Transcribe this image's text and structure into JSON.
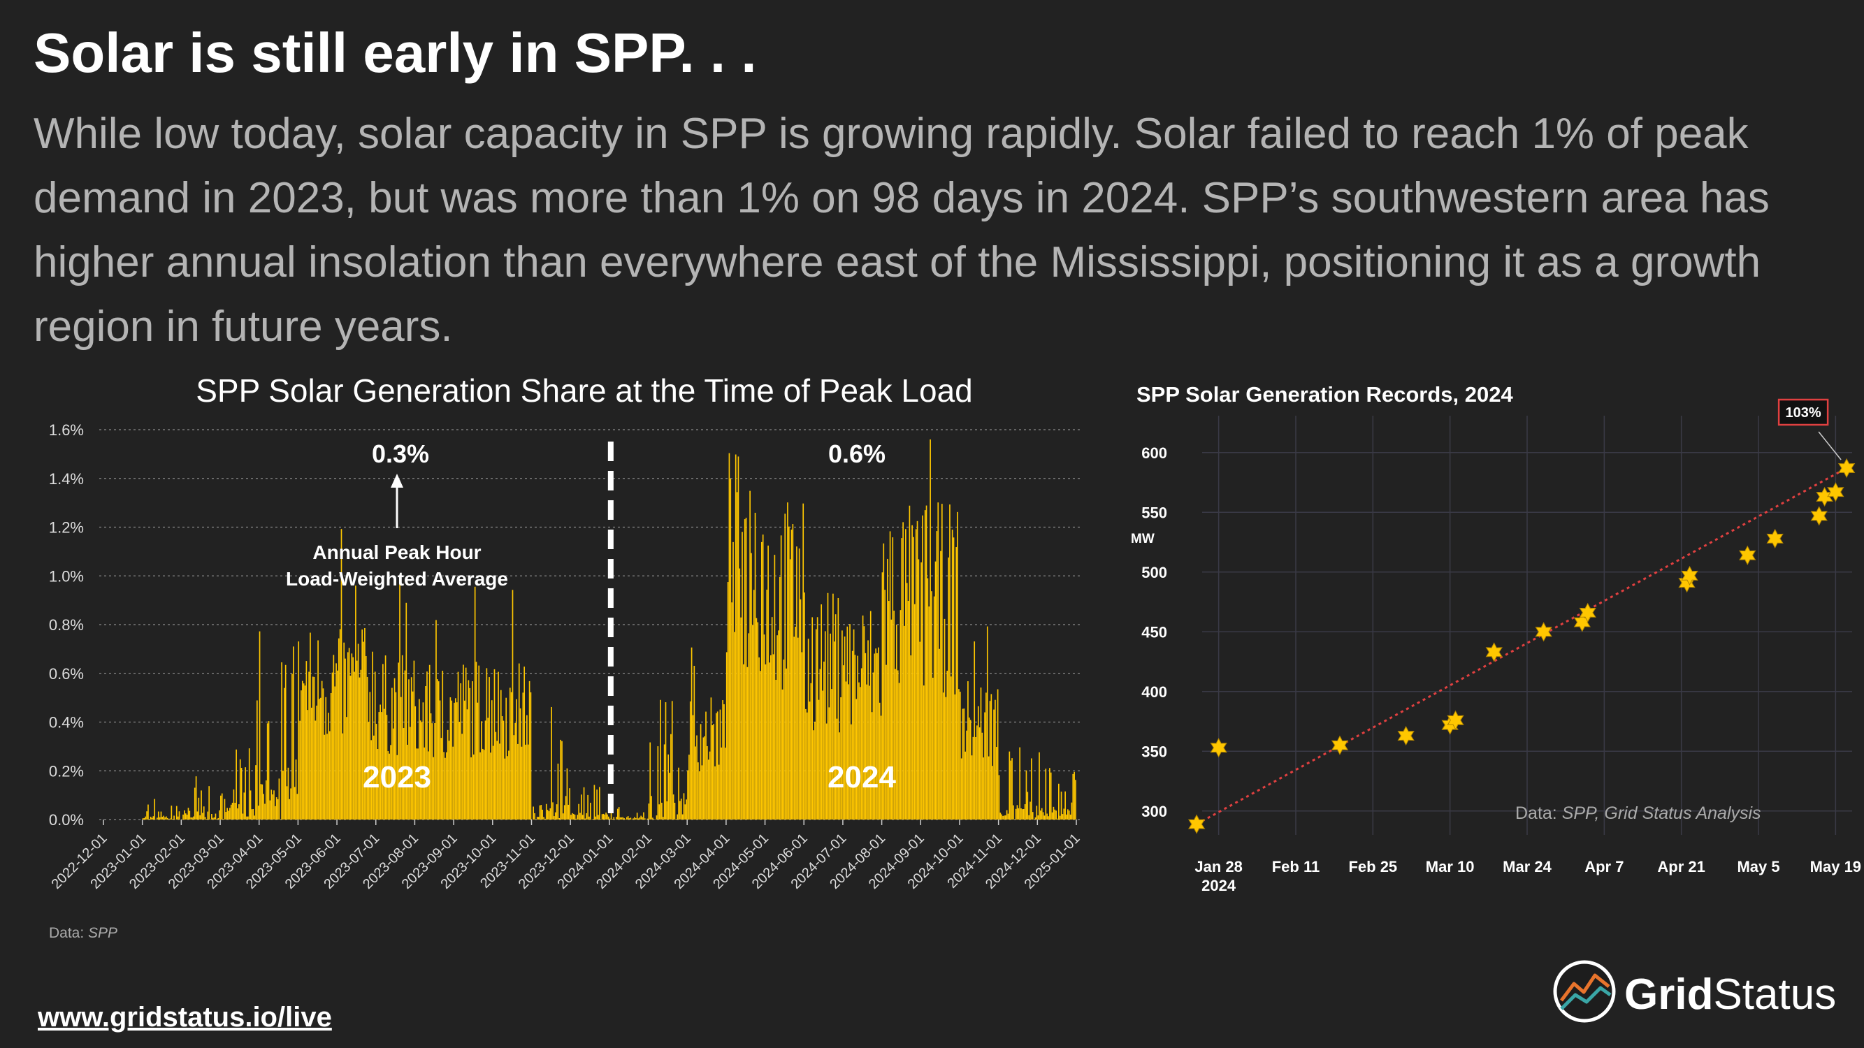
{
  "headline": "Solar is still early in SPP. . .",
  "subtext": "While low today, solar capacity in SPP is growing rapidly. Solar failed to reach 1% of peak demand in 2023, but was more than 1% on 98 days in 2024. SPP’s southwestern area has higher annual insolation than everywhere east of the Mississippi, positioning it as a growth region in future years.",
  "footer_url": "www.gridstatus.io/live",
  "logo": {
    "word1": "Grid",
    "word2": "Status"
  },
  "colors": {
    "background": "#222222",
    "bar": "#FFC700",
    "subtext": "#b4b4b4",
    "trend": "#e04040",
    "grid": "#3a3a46"
  },
  "chart_data": [
    {
      "type": "bar",
      "title": "SPP Solar Generation Share at the Time of Peak Load",
      "ylabel": "",
      "xlabel": "",
      "ylim": [
        0,
        1.6
      ],
      "ytick_labels": [
        "0.0%",
        "0.2%",
        "0.4%",
        "0.6%",
        "0.8%",
        "1.0%",
        "1.2%",
        "1.4%",
        "1.6%"
      ],
      "xtick_labels": [
        "2022-12-01",
        "2023-01-01",
        "2023-02-01",
        "2023-03-01",
        "2023-04-01",
        "2023-05-01",
        "2023-06-01",
        "2023-07-01",
        "2023-08-01",
        "2023-09-01",
        "2023-10-01",
        "2023-11-01",
        "2023-12-01",
        "2024-01-01",
        "2024-02-01",
        "2024-03-01",
        "2024-04-01",
        "2024-05-01",
        "2024-06-01",
        "2024-07-01",
        "2024-08-01",
        "2024-09-01",
        "2024-10-01",
        "2024-11-01",
        "2024-12-01",
        "2025-01-01"
      ],
      "series": [
        {
          "name": "2023",
          "label": "2023",
          "avg_label": "0.3%",
          "monthly_values": [
            0.03,
            0.06,
            0.12,
            0.28,
            0.55,
            0.55,
            0.47,
            0.42,
            0.46,
            0.45,
            0.12,
            0.05
          ]
        },
        {
          "name": "2024",
          "label": "2024",
          "avg_label": "0.6%",
          "monthly_values": [
            0.02,
            0.18,
            0.35,
            1.05,
            0.92,
            0.65,
            0.62,
            0.9,
            0.9,
            0.4,
            0.1,
            0.08
          ]
        }
      ],
      "annotation": {
        "line1": "Annual Peak Hour",
        "line2": "Load-Weighted Average"
      },
      "source_label": "Data:",
      "source": "SPP"
    },
    {
      "type": "scatter",
      "title": "SPP Solar Generation Records, 2024",
      "ylabel": "MW",
      "ylim": [
        280,
        625
      ],
      "ytick_labels": [
        "300",
        "350",
        "400",
        "450",
        "500",
        "550",
        "600"
      ],
      "ytick_values": [
        300,
        350,
        400,
        450,
        500,
        550,
        600
      ],
      "xtick_labels": [
        "Jan 28",
        "Feb 11",
        "Feb 25",
        "Mar 10",
        "Mar 24",
        "Apr 7",
        "Apr 21",
        "May 5",
        "May 19"
      ],
      "xtick_sublabel": "2024",
      "x_unit": "days since Jan 28",
      "xlim": [
        -3,
        115
      ],
      "points": [
        {
          "x": -4,
          "y": 289
        },
        {
          "x": 0,
          "y": 353
        },
        {
          "x": 22,
          "y": 355
        },
        {
          "x": 34,
          "y": 363
        },
        {
          "x": 42,
          "y": 372
        },
        {
          "x": 43,
          "y": 376
        },
        {
          "x": 50,
          "y": 433
        },
        {
          "x": 59,
          "y": 450
        },
        {
          "x": 66,
          "y": 458
        },
        {
          "x": 67,
          "y": 466
        },
        {
          "x": 85,
          "y": 491
        },
        {
          "x": 85.5,
          "y": 497
        },
        {
          "x": 96,
          "y": 514
        },
        {
          "x": 101,
          "y": 528
        },
        {
          "x": 109,
          "y": 547
        },
        {
          "x": 110,
          "y": 563
        },
        {
          "x": 112,
          "y": 567
        },
        {
          "x": 114,
          "y": 587
        }
      ],
      "trend": {
        "start": [
          -4,
          289
        ],
        "end": [
          114,
          587
        ]
      },
      "callout": "103%",
      "source_label": "Data:",
      "source": "SPP, Grid Status Analysis"
    }
  ]
}
